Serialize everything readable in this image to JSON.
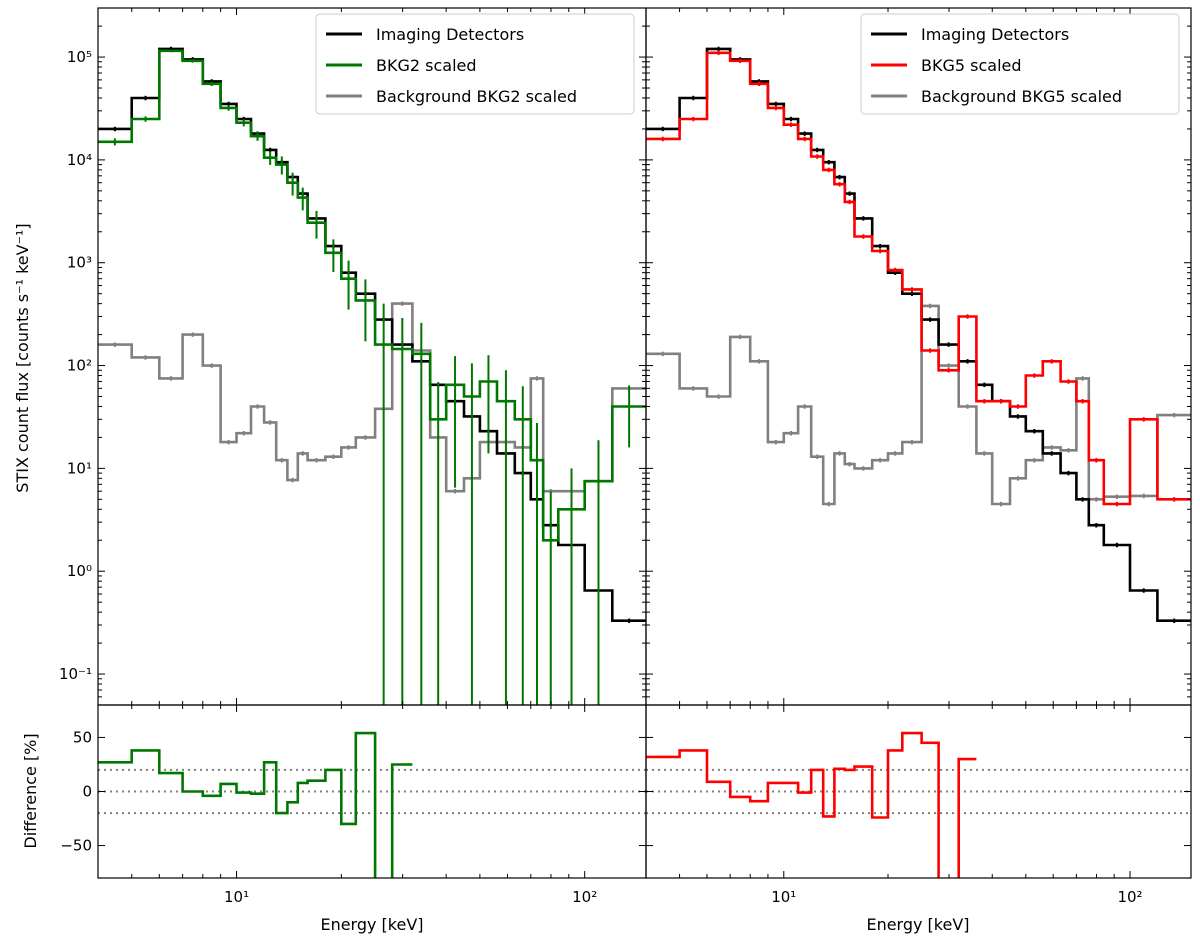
{
  "chart_data": {
    "type": "line",
    "xlabel": "Energy [keV]",
    "ylabel_top": "STIX count flux [counts s⁻¹ keV⁻¹]",
    "ylabel_bottom": "Difference [%]",
    "x_scale": "log",
    "y_scale_top": "log",
    "xlim": [
      4.0,
      150
    ],
    "ylim_top": [
      0.05,
      300000
    ],
    "ylim_bottom": [
      -80,
      80
    ],
    "x_ticks": [
      {
        "value": 10,
        "label": "10¹"
      },
      {
        "value": 100,
        "label": "10²"
      }
    ],
    "y_ticks_top": [
      {
        "value": 100000,
        "label": "10⁵"
      },
      {
        "value": 10000,
        "label": "10⁴"
      },
      {
        "value": 1000,
        "label": "10³"
      },
      {
        "value": 100,
        "label": "10²"
      },
      {
        "value": 10,
        "label": "10¹"
      },
      {
        "value": 1,
        "label": "10⁰"
      },
      {
        "value": 0.1,
        "label": "10⁻¹"
      }
    ],
    "y_ticks_bottom": [
      {
        "value": 50,
        "label": "50"
      },
      {
        "value": 0,
        "label": "0"
      },
      {
        "value": -50,
        "label": "−50"
      }
    ],
    "reference_lines_bottom": [
      20,
      0,
      -20
    ],
    "grid": false,
    "legend_position": "top-right",
    "energy_bin_edges": [
      4,
      5,
      6,
      7,
      8,
      9,
      10,
      11,
      12,
      13,
      14,
      15,
      16,
      18,
      20,
      22,
      25,
      28,
      32,
      36,
      40,
      45,
      50,
      56,
      63,
      70,
      76,
      84,
      100,
      120,
      150
    ],
    "panels": [
      {
        "name": "left",
        "series": [
          {
            "name": "Imaging Detectors",
            "color": "#000000",
            "values": [
              20000,
              40000,
              120000,
              95000,
              58000,
              35000,
              25000,
              18000,
              12500,
              9500,
              6800,
              4700,
              2700,
              1450,
              800,
              500,
              280,
              160,
              110,
              65,
              45,
              32,
              23,
              14,
              9,
              5,
              2.8,
              1.8,
              0.65,
              0.33
            ]
          },
          {
            "name": "BKG2 scaled",
            "color": "#007700",
            "values": [
              15000,
              25000,
              115000,
              92000,
              55000,
              32000,
              23000,
              17000,
              10500,
              9000,
              6000,
              4300,
              2450,
              1250,
              700,
              430,
              160,
              145,
              130,
              30,
              65,
              50,
              70,
              45,
              30,
              12,
              2,
              4,
              7.5,
              40
            ],
            "yerr_frac": [
              0.08,
              0.06,
              0.03,
              0.04,
              0.05,
              0.06,
              0.08,
              0.1,
              0.15,
              0.2,
              0.25,
              0.25,
              0.3,
              0.35,
              0.5,
              0.6,
              1.5,
              1.0,
              1.0,
              1.3,
              0.9,
              1.1,
              0.8,
              1.0,
              1.1,
              1.3,
              2.0,
              1.5,
              1.5,
              0.6
            ]
          },
          {
            "name": "Background BKG2 scaled",
            "color": "#808080",
            "values": [
              160,
              120,
              75,
              200,
              100,
              18,
              22,
              40,
              28,
              12,
              7.7,
              14,
              12,
              13,
              16,
              20,
              38,
              400,
              140,
              20,
              6,
              8,
              18,
              18,
              16,
              75,
              6,
              6,
              7.5,
              60
            ]
          }
        ],
        "difference": {
          "color": "#007700",
          "values": [
            27,
            38,
            17,
            0,
            -4,
            7,
            -1,
            -2,
            27,
            -20,
            -10,
            8,
            10,
            20,
            -30,
            54,
            -90,
            25,
            null,
            null,
            null,
            null,
            null,
            null,
            null,
            null,
            null,
            null,
            null,
            null
          ]
        }
      },
      {
        "name": "right",
        "series": [
          {
            "name": "Imaging Detectors",
            "color": "#000000",
            "values": [
              20000,
              40000,
              120000,
              95000,
              58000,
              35000,
              25000,
              18000,
              12500,
              9500,
              6800,
              4700,
              2700,
              1450,
              800,
              500,
              280,
              160,
              110,
              65,
              45,
              32,
              23,
              14,
              9,
              5,
              2.8,
              1.8,
              0.65,
              0.33
            ]
          },
          {
            "name": "BKG5 scaled",
            "color": "#ff0000",
            "values": [
              16000,
              25000,
              110000,
              92000,
              55000,
              32000,
              22000,
              16000,
              10800,
              8000,
              5800,
              3900,
              1800,
              1300,
              850,
              550,
              140,
              90,
              300,
              45,
              45,
              40,
              80,
              110,
              70,
              45,
              12,
              4.5,
              30,
              5
            ]
          },
          {
            "name": "Background BKG5 scaled",
            "color": "#808080",
            "values": [
              130,
              60,
              50,
              190,
              110,
              18,
              22,
              40,
              13,
              4.5,
              14,
              11,
              10,
              12,
              14,
              18,
              380,
              100,
              40,
              14,
              4.5,
              8,
              12,
              16,
              15,
              75,
              5,
              5.3,
              5.4,
              33
            ]
          }
        ],
        "difference": {
          "color": "#ff0000",
          "values": [
            32,
            38,
            9,
            -5,
            -9,
            8,
            8,
            -1,
            20,
            -23,
            21,
            20,
            23,
            -24,
            38,
            54,
            45,
            -88,
            30,
            null,
            null,
            null,
            null,
            null,
            null,
            null,
            null,
            null,
            null,
            null
          ]
        }
      }
    ]
  }
}
